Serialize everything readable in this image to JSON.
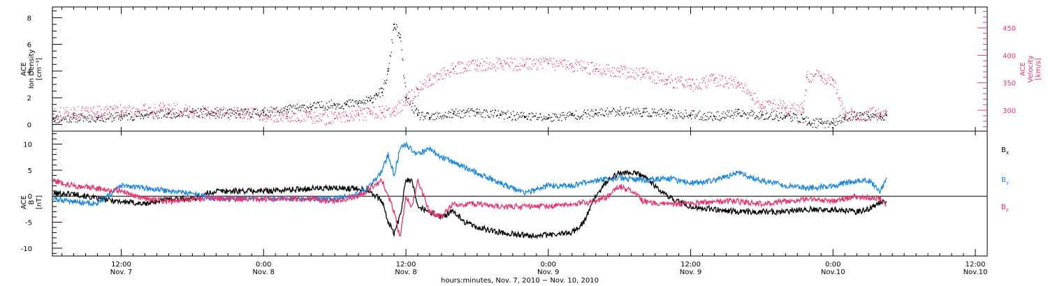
{
  "figure": {
    "xaxis_title": "hours:minutes, Nov.  7, 2010 − Nov. 10, 2010",
    "xticks": [
      {
        "t": 12,
        "time": "12:00",
        "date": "Nov. 7"
      },
      {
        "t": 24,
        "time": "0:00",
        "date": "Nov. 8"
      },
      {
        "t": 36,
        "time": "12:00",
        "date": "Nov. 8"
      },
      {
        "t": 48,
        "time": "0:00",
        "date": "Nov. 9"
      },
      {
        "t": 60,
        "time": "12:00",
        "date": "Nov. 9"
      },
      {
        "t": 72,
        "time": "0:00",
        "date": "Nov.10"
      },
      {
        "t": 84,
        "time": "12:00",
        "date": "Nov.10"
      }
    ],
    "x_unit": "hours since 0:00 Nov. 7, 2010",
    "x_range": [
      6.2,
      85
    ],
    "colors": {
      "black": "#000000",
      "blue": "#1a86e0",
      "pink": "#e8336b"
    }
  },
  "chart_data": [
    {
      "type": "scatter",
      "panel": "top",
      "ylabel_left": [
        "ACE",
        "Ion Density",
        "[cm⁻³]"
      ],
      "ylabel_right": [
        "ACE",
        "Velocity",
        "[km/s]"
      ],
      "ylim_left": [
        -0.5,
        8.8
      ],
      "yticks_left": [
        "0",
        "2",
        "4",
        "6",
        "8"
      ],
      "ylim_right": [
        262,
        488
      ],
      "yticks_right": [
        "300",
        "350",
        "400",
        "450"
      ],
      "series": [
        {
          "name": "",
          "axis": "left",
          "color": "black",
          "x": [
            6.3,
            8,
            10,
            12,
            14,
            16,
            18,
            20,
            22,
            24,
            26,
            28,
            30,
            31,
            32,
            33,
            33.5,
            34,
            34.5,
            35,
            35.5,
            36,
            37,
            38,
            40,
            42,
            44,
            46,
            48,
            50,
            52,
            54,
            56,
            58,
            60,
            62,
            64,
            66,
            68,
            69.5,
            70,
            71,
            72,
            73,
            74,
            75,
            76,
            76.5
          ],
          "y": [
            0.4,
            0.5,
            0.5,
            0.6,
            0.7,
            0.8,
            0.9,
            0.8,
            0.8,
            0.9,
            1.1,
            1.3,
            1.5,
            1.5,
            1.6,
            1.8,
            2.3,
            2.4,
            4.0,
            7.5,
            6.5,
            2.0,
            0.7,
            0.5,
            0.8,
            0.9,
            0.7,
            0.6,
            0.5,
            0.7,
            0.8,
            1.0,
            0.9,
            0.8,
            0.7,
            0.6,
            0.8,
            0.7,
            0.6,
            0.4,
            0.1,
            0.1,
            0.1,
            0.5,
            0.7,
            0.6,
            0.6,
            0.7
          ]
        },
        {
          "name": "",
          "axis": "right",
          "color": "pink",
          "x": [
            6.3,
            8,
            10,
            12,
            14,
            16,
            18,
            20,
            22,
            24,
            26,
            28,
            30,
            31,
            32,
            33,
            34,
            35,
            36,
            37,
            38,
            40,
            42,
            44,
            46,
            48,
            50,
            52,
            54,
            56,
            58,
            60,
            62,
            64,
            66,
            68,
            69.5,
            69.8,
            71,
            72,
            73,
            74,
            76,
            76.5
          ],
          "y": [
            293,
            295,
            297,
            298,
            300,
            302,
            297,
            295,
            293,
            291,
            289,
            287,
            285,
            290,
            292,
            294,
            296,
            298,
            318,
            338,
            355,
            375,
            382,
            385,
            383,
            385,
            380,
            375,
            370,
            365,
            355,
            345,
            355,
            350,
            310,
            305,
            302,
            360,
            362,
            355,
            290,
            292,
            295,
            297
          ]
        }
      ]
    },
    {
      "type": "line",
      "panel": "bottom",
      "ylabel_left": [
        "ACE",
        "B",
        "[nT]"
      ],
      "ylim": [
        -11.5,
        12.5
      ],
      "yticks": [
        "10",
        "5",
        "0",
        "-5",
        "-10"
      ],
      "zero_line": true,
      "series": [
        {
          "name": "Bx",
          "color": "black",
          "x": [
            6.3,
            8,
            10,
            12,
            14,
            16,
            18,
            20,
            22,
            24,
            26,
            28,
            30,
            32,
            33,
            34,
            34.5,
            35,
            35.5,
            36,
            36.5,
            37,
            38,
            39,
            40,
            41,
            42,
            44,
            46,
            48,
            50,
            51,
            52,
            53,
            54,
            55,
            56,
            58,
            60,
            62,
            64,
            66,
            68,
            70,
            72,
            74,
            75,
            76,
            76.5
          ],
          "y": [
            0.5,
            0.5,
            -0.5,
            -1.0,
            -1.5,
            -0.5,
            -0.5,
            1.0,
            1.0,
            1.0,
            1.2,
            1.5,
            1.5,
            1.5,
            1.0,
            -1.0,
            -5.0,
            -7.0,
            -4.0,
            3.0,
            3.0,
            -2.0,
            -3.0,
            -4.0,
            -3.0,
            -5.0,
            -6.0,
            -7.0,
            -7.5,
            -7.5,
            -7.0,
            -5.0,
            0.0,
            3.0,
            4.5,
            4.5,
            4.0,
            0.0,
            -2.0,
            -2.5,
            -3.0,
            -3.0,
            -3.0,
            -2.5,
            -2.5,
            -3.0,
            -2.5,
            -1.0,
            -1.5
          ]
        },
        {
          "name": "By",
          "color": "blue",
          "x": [
            6.3,
            8,
            10,
            12,
            14,
            16,
            18,
            20,
            22,
            24,
            26,
            28,
            30,
            32,
            33,
            34,
            34.5,
            35,
            35.5,
            36,
            36.5,
            37,
            38,
            39,
            40,
            41,
            42,
            44,
            46,
            48,
            50,
            52,
            54,
            56,
            58,
            60,
            62,
            64,
            66,
            68,
            70,
            72,
            74,
            75,
            76,
            76.5
          ],
          "y": [
            -0.5,
            -1.0,
            -1.5,
            2.0,
            1.5,
            1.0,
            0.5,
            -0.5,
            -0.5,
            -0.5,
            -0.5,
            -0.5,
            -0.5,
            0.5,
            2.0,
            5.0,
            8.0,
            4.0,
            9.0,
            10.0,
            9.0,
            8.0,
            9.0,
            7.5,
            6.5,
            5.5,
            4.5,
            2.5,
            0.5,
            2.0,
            2.0,
            3.0,
            3.5,
            3.0,
            3.5,
            2.5,
            3.0,
            4.5,
            3.0,
            2.0,
            1.5,
            2.0,
            3.0,
            3.0,
            1.0,
            3.5
          ]
        },
        {
          "name": "Bz",
          "color": "pink",
          "x": [
            6.3,
            8,
            10,
            12,
            14,
            16,
            18,
            20,
            22,
            24,
            26,
            28,
            30,
            32,
            33,
            34,
            34.5,
            35,
            35.5,
            36,
            36.5,
            37,
            38,
            39,
            40,
            42,
            44,
            46,
            48,
            50,
            52,
            53,
            54,
            55,
            56,
            58,
            60,
            62,
            64,
            66,
            68,
            70,
            72,
            74,
            76,
            76.5
          ],
          "y": [
            3.0,
            2.0,
            1.5,
            1.0,
            -0.5,
            -1.0,
            -0.5,
            -0.5,
            -0.5,
            -0.5,
            -0.5,
            -0.5,
            -1.0,
            0.0,
            1.5,
            3.0,
            0.0,
            -3.0,
            -8.0,
            0.0,
            -2.0,
            3.0,
            -3.0,
            -4.0,
            -1.5,
            -1.5,
            -2.0,
            -2.0,
            -2.0,
            -1.5,
            -1.0,
            0.0,
            2.0,
            1.0,
            -1.0,
            -1.5,
            -1.5,
            -1.0,
            -1.0,
            -1.5,
            -1.0,
            -0.5,
            -1.0,
            0.0,
            -0.5,
            -1.5
          ]
        }
      ]
    }
  ]
}
